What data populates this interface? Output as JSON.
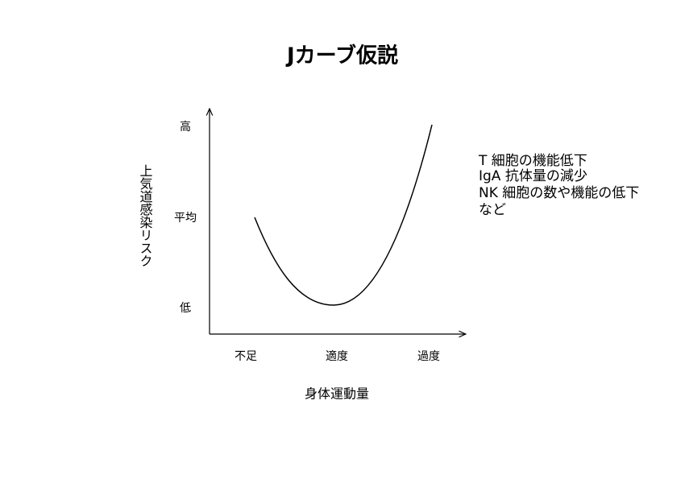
{
  "title": "Jカーブ仮説",
  "y_axis": {
    "label": "上気道感染リスク",
    "levels": [
      "高",
      "平均",
      "低"
    ]
  },
  "x_axis": {
    "label": "身体運動量",
    "levels": [
      "不足",
      "適度",
      "過度"
    ]
  },
  "annotation": [
    "T 細胞の機能低下",
    "IgA 抗体量の減少",
    "NK 細胞の数や機能の低下",
    "など"
  ]
}
